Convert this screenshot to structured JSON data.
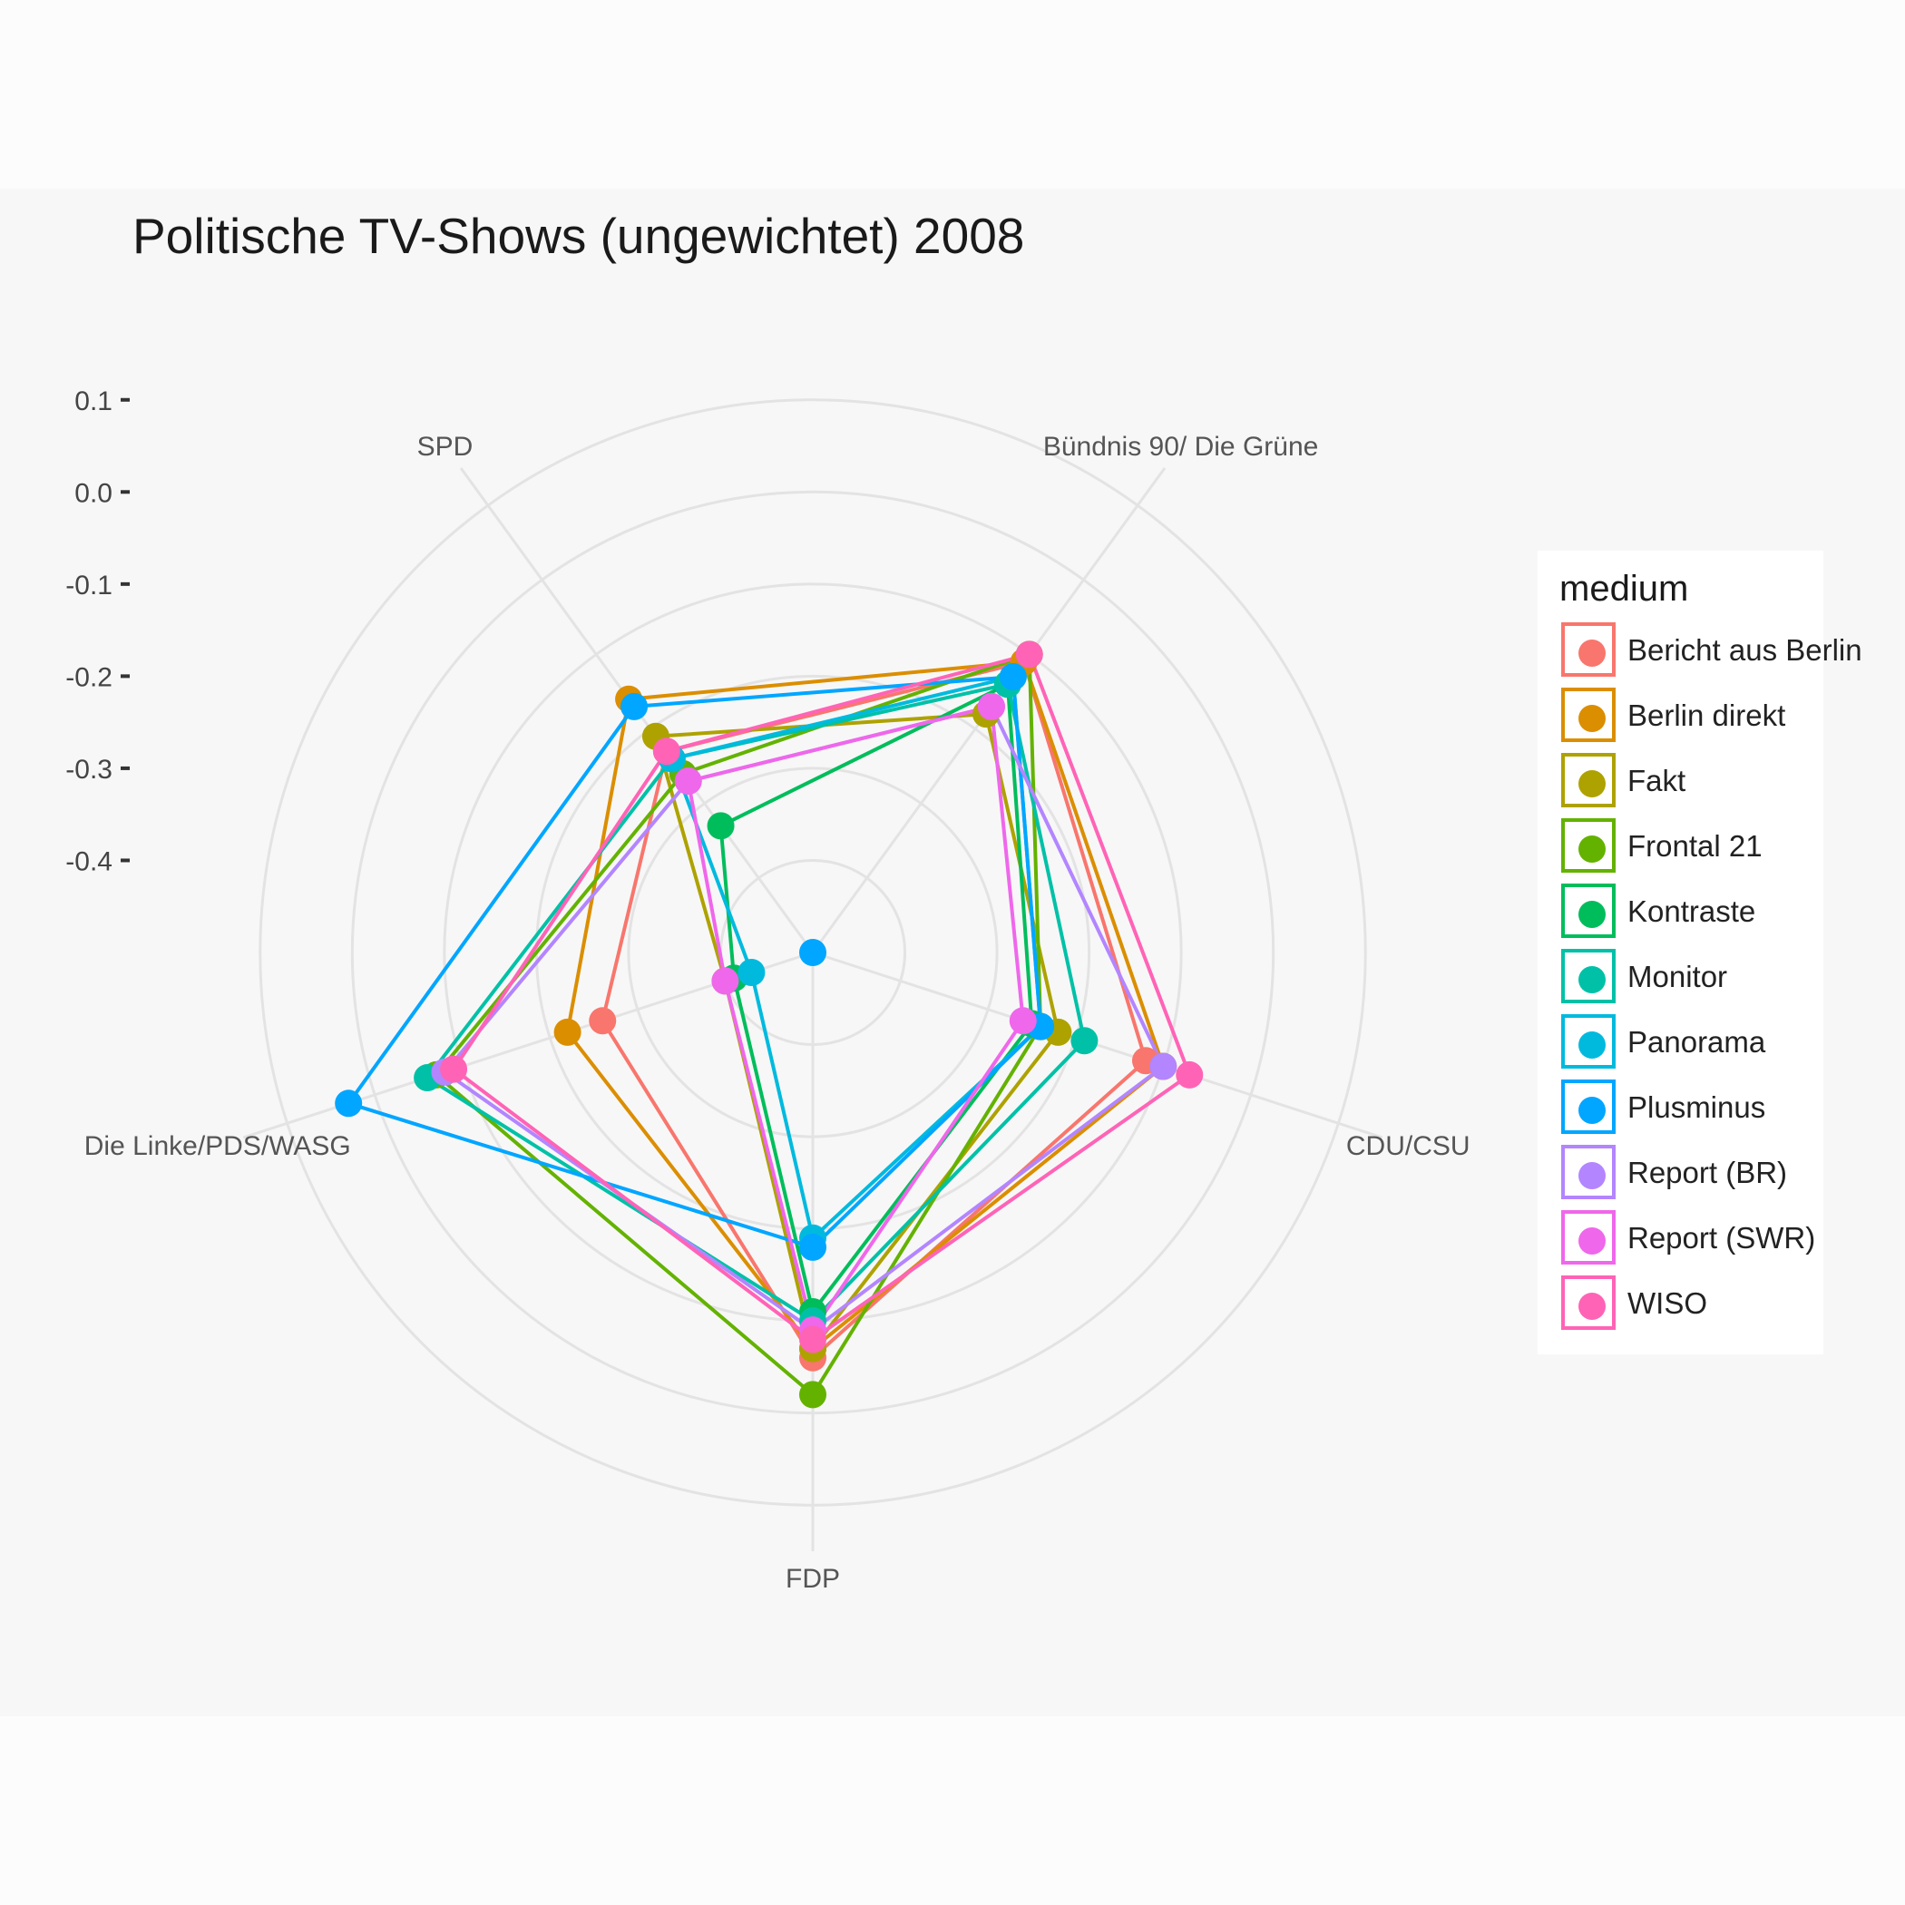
{
  "chart_data": {
    "type": "radar",
    "title": "Politische TV-Shows (ungewichtet) 2008",
    "axes": [
      "SPD",
      "Bündnis 90/ Die Grüne",
      "CDU/CSU",
      "FDP",
      "Die Linke/PDS/WASG"
    ],
    "radial_ticks": [
      "0.1",
      "0.0",
      "-0.1",
      "-0.2",
      "-0.3",
      "-0.4"
    ],
    "radial_range": [
      -0.5,
      0.15
    ],
    "legend_title": "medium",
    "legend_position": "right",
    "grid": true,
    "series": [
      {
        "name": "Bericht aus Berlin",
        "color": "#F8766D",
        "values": [
          -0.23,
          -0.11,
          -0.12,
          -0.06,
          -0.26
        ]
      },
      {
        "name": "Berlin direkt",
        "color": "#DB8E00",
        "values": [
          -0.16,
          -0.11,
          -0.1,
          -0.07,
          -0.22
        ]
      },
      {
        "name": "Fakt",
        "color": "#AEA200",
        "values": [
          -0.21,
          -0.18,
          -0.22,
          -0.07,
          -0.4
        ]
      },
      {
        "name": "Frontal 21",
        "color": "#64B200",
        "values": [
          -0.26,
          -0.1,
          -0.24,
          -0.02,
          -0.07
        ]
      },
      {
        "name": "Kontraste",
        "color": "#00BD5C",
        "values": [
          -0.33,
          -0.14,
          -0.25,
          -0.11,
          -0.41
        ]
      },
      {
        "name": "Monitor",
        "color": "#00C1A7",
        "values": [
          -0.24,
          -0.14,
          -0.19,
          -0.1,
          -0.06
        ]
      },
      {
        "name": "Panorama",
        "color": "#00BADE",
        "values": [
          -0.24,
          -0.13,
          -0.24,
          -0.19,
          -0.43
        ]
      },
      {
        "name": "Plusminus",
        "color": "#00A6FF",
        "values": [
          -0.17,
          -0.13,
          -0.24,
          -0.18,
          0.03
        ]
      },
      {
        "name": "Report (BR)",
        "color": "#B385FF",
        "values": [
          -0.27,
          -0.17,
          -0.1,
          -0.09,
          -0.08
        ]
      },
      {
        "name": "Report (SWR)",
        "color": "#EF67EB",
        "values": [
          -0.27,
          -0.17,
          -0.26,
          -0.09,
          -0.4
        ]
      },
      {
        "name": "WISO",
        "color": "#FF63B6",
        "values": [
          -0.23,
          -0.1,
          -0.07,
          -0.08,
          -0.09
        ]
      }
    ],
    "extra_points": [
      {
        "series": "Plusminus",
        "axis": "center",
        "value": -0.5
      }
    ]
  }
}
